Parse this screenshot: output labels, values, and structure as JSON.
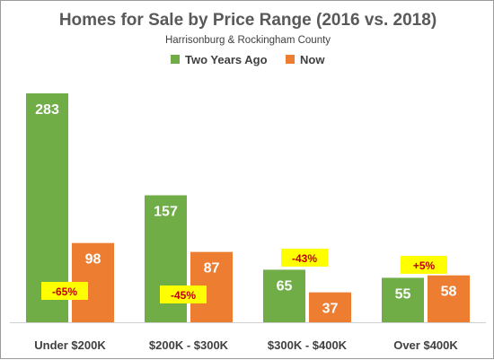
{
  "chart_data": {
    "type": "bar",
    "title": "Homes for Sale by Price Range (2016 vs. 2018)",
    "subtitle": "Harrisonburg & Rockingham County",
    "categories": [
      "Under $200K",
      "$200K - $300K",
      "$300K - $400K",
      "Over $400K"
    ],
    "series": [
      {
        "name": "Two Years Ago",
        "values": [
          283,
          157,
          65,
          55
        ],
        "color": "#70ad47"
      },
      {
        "name": "Now",
        "values": [
          98,
          87,
          37,
          58
        ],
        "color": "#ed7d31"
      }
    ],
    "annotations": [
      "-65%",
      "-45%",
      "-43%",
      "+5%"
    ],
    "annotation_color": "#c00000",
    "annotation_background": "#ffff00",
    "ylim": [
      0,
      300
    ],
    "grid": false,
    "legend_placement": "top-center"
  }
}
